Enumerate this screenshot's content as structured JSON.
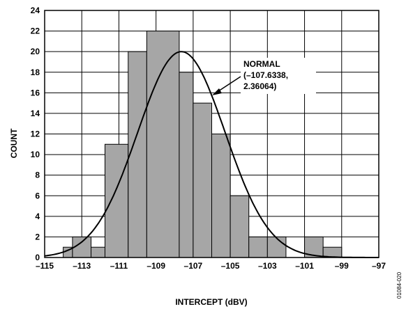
{
  "chart_data": {
    "type": "bar",
    "subtype": "histogram-with-normal-fit",
    "xlabel": "INTERCEPT (dBV)",
    "ylabel": "COUNT",
    "xlim": [
      -115,
      -97
    ],
    "ylim": [
      0,
      24
    ],
    "xticks": [
      -115,
      -113,
      -111,
      -109,
      -107,
      -105,
      -103,
      -101,
      -99,
      -97
    ],
    "xtick_labels": [
      "–115",
      "–113",
      "–111",
      "–109",
      "–107",
      "–105",
      "–103",
      "–101",
      "–99",
      "–97"
    ],
    "yticks": [
      0,
      2,
      4,
      6,
      8,
      10,
      12,
      14,
      16,
      18,
      20,
      22,
      24
    ],
    "grid": true,
    "bar_color": "#a6a6a6",
    "bins": [
      {
        "x0": -114,
        "x1": -113.5,
        "count": 1
      },
      {
        "x0": -113.5,
        "x1": -112.5,
        "count": 2
      },
      {
        "x0": -112.5,
        "x1": -111.75,
        "count": 1
      },
      {
        "x0": -111.75,
        "x1": -110.5,
        "count": 11
      },
      {
        "x0": -110.5,
        "x1": -109.5,
        "count": 20
      },
      {
        "x0": -109.5,
        "x1": -107.75,
        "count": 22
      },
      {
        "x0": -107.75,
        "x1": -107.0,
        "count": 18
      },
      {
        "x0": -107.0,
        "x1": -106.0,
        "count": 15
      },
      {
        "x0": -106.0,
        "x1": -105.0,
        "count": 12
      },
      {
        "x0": -105.0,
        "x1": -104.0,
        "count": 6
      },
      {
        "x0": -104.0,
        "x1": -103.0,
        "count": 2
      },
      {
        "x0": -103.0,
        "x1": -102.0,
        "count": 2
      },
      {
        "x0": -101.0,
        "x1": -100.0,
        "count": 2
      },
      {
        "x0": -100.0,
        "x1": -99.0,
        "count": 1
      }
    ],
    "normal_fit": {
      "mean": -107.6338,
      "std": 2.36064,
      "peak": 20
    },
    "annotation_lines": [
      "NORMAL",
      "(–107.6338,",
      "2.36064)"
    ],
    "figure_code": "01084-020"
  }
}
